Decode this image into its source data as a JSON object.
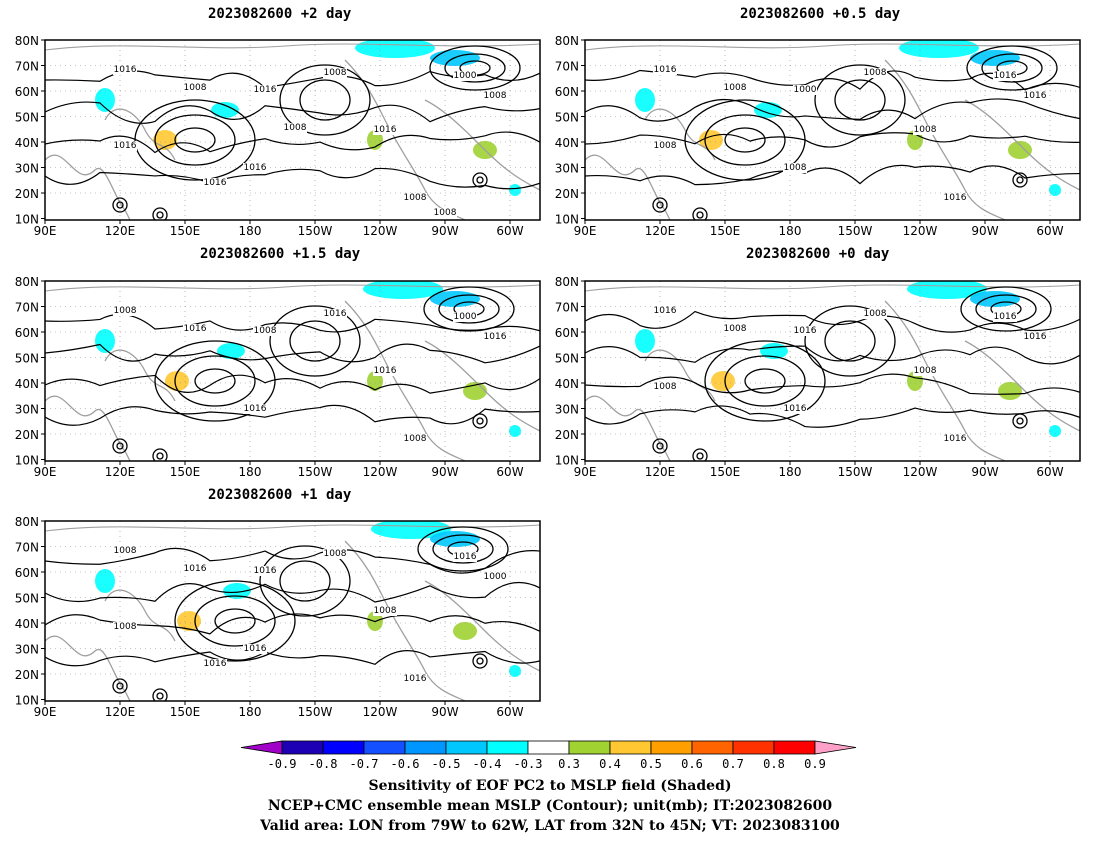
{
  "panels": [
    {
      "title": "2023082600 +2 day",
      "contour_labels": [
        "1016",
        "1008",
        "1016",
        "1008",
        "1000",
        "1008",
        "1016",
        "1016",
        "1008",
        "1016",
        "1016",
        "1008",
        "1008"
      ]
    },
    {
      "title": "2023082600 +0.5 day",
      "contour_labels": [
        "1016",
        "1008",
        "1000",
        "1008",
        "1016",
        "1016",
        "1008",
        "1008",
        "1016",
        "1008"
      ]
    },
    {
      "title": "2023082600 +1.5 day",
      "contour_labels": [
        "1008",
        "1016",
        "1008",
        "1016",
        "1000",
        "1016",
        "1016",
        "1016",
        "1008"
      ]
    },
    {
      "title": "2023082600 +0 day",
      "contour_labels": [
        "1016",
        "1008",
        "1016",
        "1008",
        "1016",
        "1016",
        "1008",
        "1016",
        "1016",
        "1008"
      ]
    },
    {
      "title": "2023082600 +1 day",
      "contour_labels": [
        "1008",
        "1016",
        "1016",
        "1008",
        "1016",
        "1000",
        "1008",
        "1016",
        "1016",
        "1008",
        "1016"
      ]
    }
  ],
  "axes": {
    "lat_ticks": [
      "80N",
      "70N",
      "60N",
      "50N",
      "40N",
      "30N",
      "20N",
      "10N"
    ],
    "lon_ticks": [
      "90E",
      "120E",
      "150E",
      "180",
      "150W",
      "120W",
      "90W",
      "60W"
    ]
  },
  "colorbar": {
    "labels": [
      "-0.9",
      "-0.8",
      "-0.7",
      "-0.6",
      "-0.5",
      "-0.4",
      "-0.3",
      "0.3",
      "0.4",
      "0.5",
      "0.6",
      "0.7",
      "0.8",
      "0.9"
    ],
    "colors": [
      "#a000c8",
      "#1e00b4",
      "#0000ff",
      "#1450ff",
      "#0096ff",
      "#00c8ff",
      "#00ffff",
      "#ffffff",
      "#a0d232",
      "#ffc832",
      "#ffa000",
      "#ff6400",
      "#ff3200",
      "#ff0000",
      "#ffa0c8"
    ]
  },
  "footer": [
    "Sensitivity of EOF PC2 to MSLP field (Shaded)",
    "NCEP+CMC ensemble mean MSLP (Contour); unit(mb); IT:2023082600",
    "Valid area: LON from 79W to 62W, LAT from 32N to 45N; VT: 2023083100"
  ],
  "colors": {
    "contour": "#000000",
    "coast": "#a0a0a0",
    "grid": "#8c8c8c"
  }
}
